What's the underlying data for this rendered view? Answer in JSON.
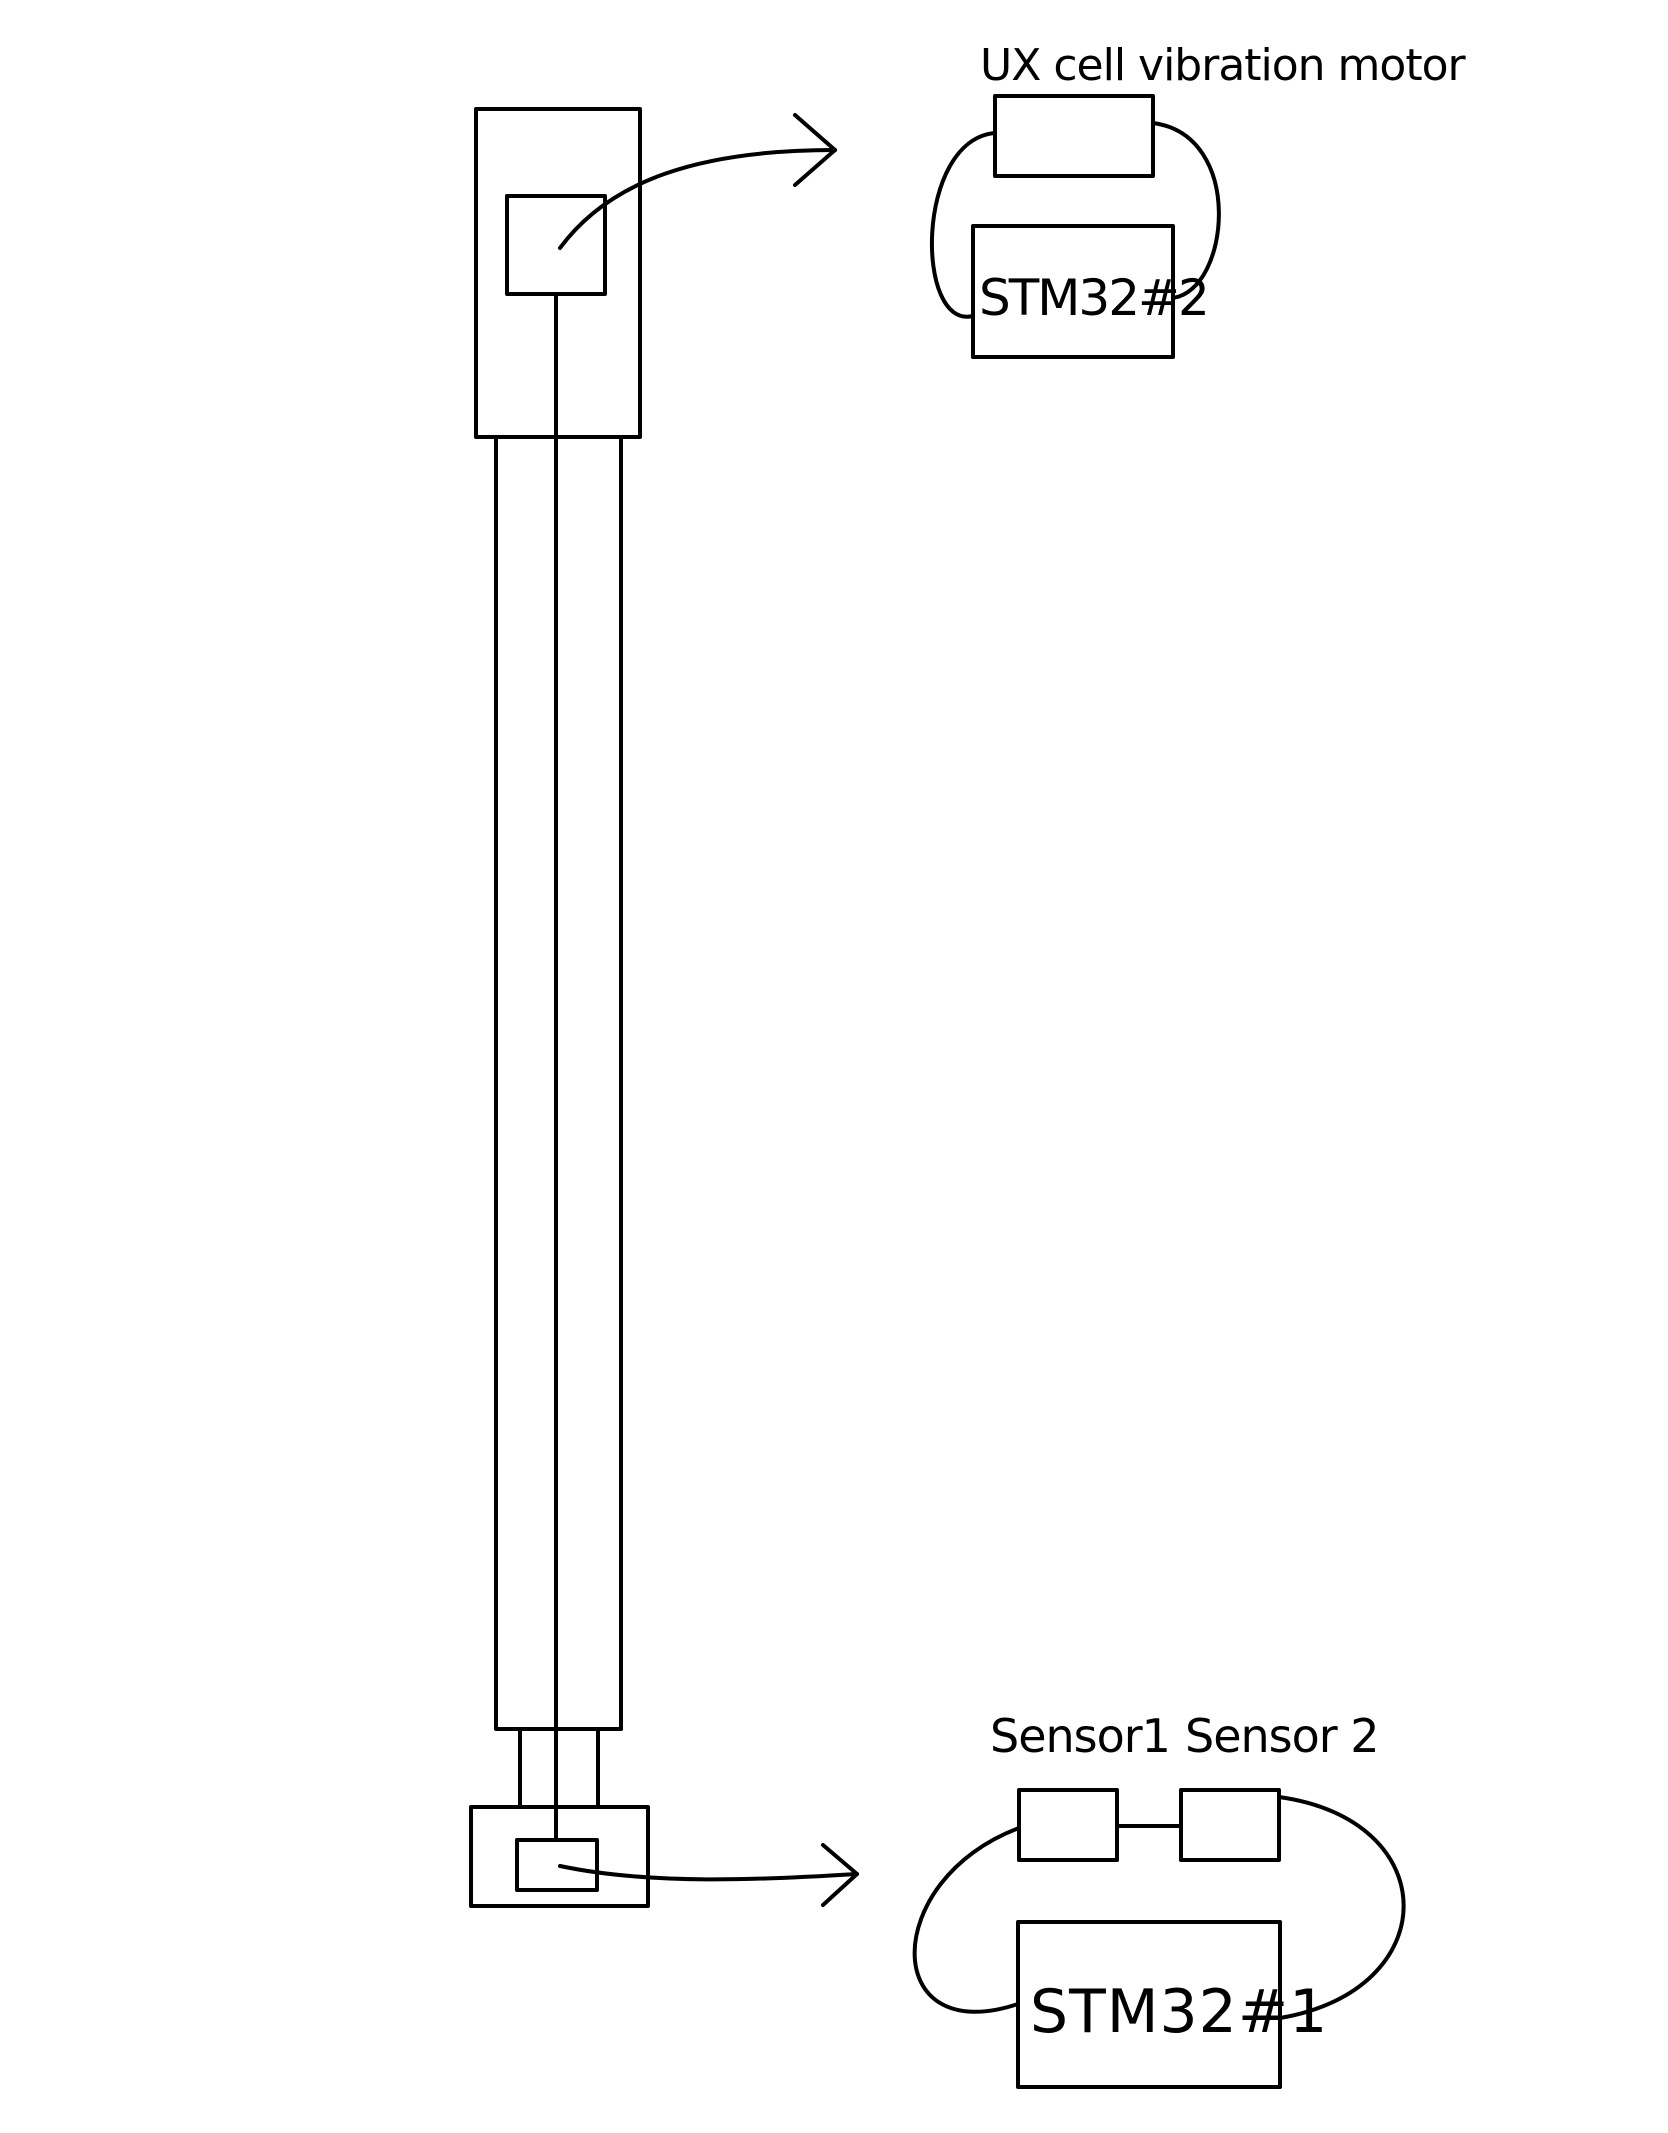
{
  "labels": {
    "motor": "UX cell vibration motor",
    "board_top": "STM32#2",
    "sensor_1": "Sensor1",
    "sensor_2": "Sensor 2",
    "board_bottom": "STM32#1"
  },
  "colors": {
    "stroke": "#000000",
    "background": "#ffffff"
  }
}
